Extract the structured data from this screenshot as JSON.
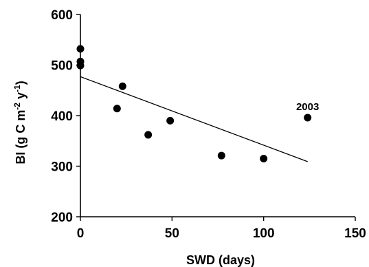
{
  "chart_data": {
    "type": "scatter",
    "xlabel": "SWD  (days)",
    "ylabel": {
      "main": "BI  (g C m",
      "sup1": "-2",
      "mid": " y",
      "sup2": "-1",
      "end": ")"
    },
    "xlim": [
      0,
      150
    ],
    "ylim": [
      200,
      600
    ],
    "x_ticks": [
      "0",
      "50",
      "100",
      "150"
    ],
    "y_ticks": [
      "200",
      "300",
      "400",
      "500",
      "600"
    ],
    "grid": false,
    "legend": "none",
    "points": [
      {
        "x": 0,
        "y": 532
      },
      {
        "x": 0,
        "y": 507
      },
      {
        "x": 0,
        "y": 499
      },
      {
        "x": 20,
        "y": 414
      },
      {
        "x": 23,
        "y": 458
      },
      {
        "x": 37,
        "y": 362
      },
      {
        "x": 49,
        "y": 390
      },
      {
        "x": 77,
        "y": 321
      },
      {
        "x": 100,
        "y": 315
      },
      {
        "x": 124,
        "y": 396
      }
    ],
    "trendline": {
      "x": [
        0,
        124
      ],
      "y": [
        477,
        309
      ]
    },
    "annotations": [
      {
        "text": "2003",
        "x": 124,
        "y": 396
      }
    ],
    "colors": {
      "points": "#000000",
      "line": "#000000",
      "axes": "#000000"
    }
  }
}
